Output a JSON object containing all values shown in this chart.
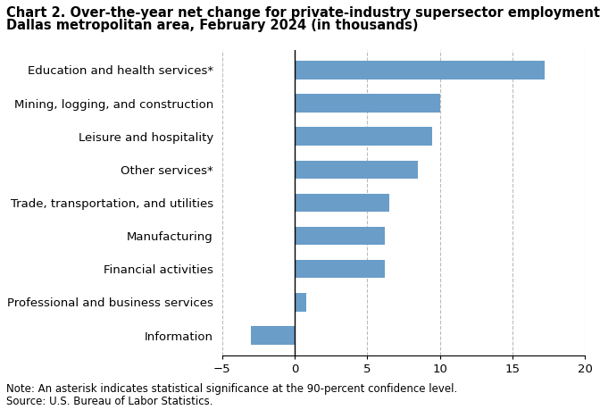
{
  "title_line1": "Chart 2. Over-the-year net change for private-industry supersector employment in the",
  "title_line2": "Dallas metropolitan area, February 2024 (in thousands)",
  "categories": [
    "Information",
    "Professional and business services",
    "Financial activities",
    "Manufacturing",
    "Trade, transportation, and utilities",
    "Other services*",
    "Leisure and hospitality",
    "Mining, logging, and construction",
    "Education and health services*"
  ],
  "values": [
    -3.0,
    0.8,
    6.2,
    6.2,
    6.5,
    8.5,
    9.5,
    10.0,
    17.2
  ],
  "bar_color": "#6a9dc8",
  "xlim": [
    -5,
    20
  ],
  "xticks": [
    -5,
    0,
    5,
    10,
    15,
    20
  ],
  "grid_color": "#bbbbbb",
  "background_color": "#ffffff",
  "note": "Note: An asterisk indicates statistical significance at the 90-percent confidence level.",
  "source": "Source: U.S. Bureau of Labor Statistics.",
  "title_fontsize": 10.5,
  "label_fontsize": 9.5,
  "tick_fontsize": 9.5,
  "note_fontsize": 8.5
}
